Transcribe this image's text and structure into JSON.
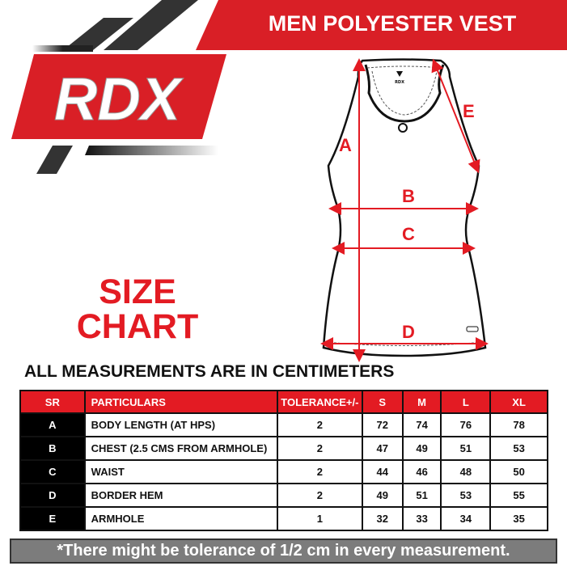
{
  "header": {
    "title": "MEN POLYESTER VEST",
    "brand": "RDX"
  },
  "size_chart_title": [
    "SIZE",
    "CHART"
  ],
  "diagram": {
    "labels": [
      "A",
      "B",
      "C",
      "D",
      "E"
    ],
    "garment_brand": "RDX"
  },
  "measurement_note": "ALL MEASUREMENTS ARE IN CENTIMETERS",
  "table": {
    "headers": [
      "SR",
      "PARTICULARS",
      "TOLERANCE+/-",
      "S",
      "M",
      "L",
      "XL"
    ],
    "rows": [
      {
        "sr": "A",
        "particular": "BODY LENGTH (AT HPS)",
        "tolerance": "2",
        "s": "72",
        "m": "74",
        "l": "76",
        "xl": "78"
      },
      {
        "sr": "B",
        "particular": "CHEST (2.5 CMS FROM ARMHOLE)",
        "tolerance": "2",
        "s": "47",
        "m": "49",
        "l": "51",
        "xl": "53"
      },
      {
        "sr": "C",
        "particular": "WAIST",
        "tolerance": "2",
        "s": "44",
        "m": "46",
        "l": "48",
        "xl": "50"
      },
      {
        "sr": "D",
        "particular": "BORDER HEM",
        "tolerance": "2",
        "s": "49",
        "m": "51",
        "l": "53",
        "xl": "55"
      },
      {
        "sr": "E",
        "particular": "ARMHOLE",
        "tolerance": "1",
        "s": "32",
        "m": "33",
        "l": "34",
        "xl": "35"
      }
    ]
  },
  "footer_note": "*There might be tolerance of 1/2 cm in every measurement.",
  "colors": {
    "accent": "#e31b23",
    "dark": "#333333",
    "footer": "#7c7c7c"
  }
}
